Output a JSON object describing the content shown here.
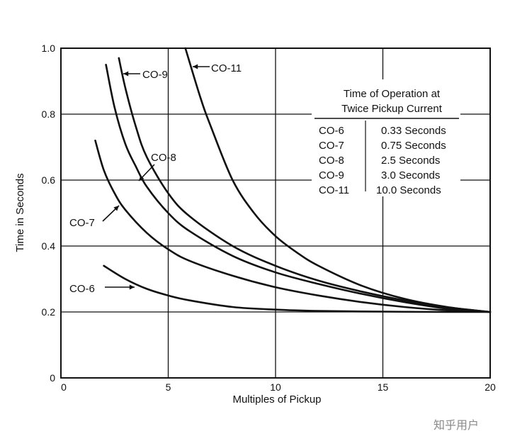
{
  "chart_data": {
    "type": "line",
    "title": "",
    "xlabel": "Multiples of Pickup",
    "ylabel": "Time in Seconds",
    "xlim": [
      0,
      20
    ],
    "ylim": [
      0,
      1.0
    ],
    "x_ticks": [
      "0",
      "5",
      "10",
      "15",
      "20"
    ],
    "y_ticks": [
      "0",
      "0.2",
      "0.4",
      "0.6",
      "0.8",
      "1.0"
    ],
    "grid": true,
    "series": [
      {
        "name": "CO-6",
        "x": [
          2,
          3,
          4,
          5,
          6,
          8,
          10,
          12,
          15,
          18,
          20
        ],
        "y": [
          0.34,
          0.3,
          0.27,
          0.25,
          0.235,
          0.215,
          0.207,
          0.203,
          0.201,
          0.2,
          0.2
        ]
      },
      {
        "name": "CO-7",
        "x": [
          1.6,
          2,
          2.5,
          3,
          4,
          5,
          6,
          8,
          10,
          12,
          14,
          16,
          18,
          20
        ],
        "y": [
          0.72,
          0.63,
          0.56,
          0.51,
          0.44,
          0.39,
          0.355,
          0.31,
          0.275,
          0.25,
          0.23,
          0.215,
          0.205,
          0.2
        ]
      },
      {
        "name": "CO-8",
        "x": [
          2.1,
          2.5,
          3,
          3.5,
          4,
          5,
          6,
          8,
          10,
          12,
          14,
          16,
          18,
          20
        ],
        "y": [
          0.95,
          0.82,
          0.71,
          0.64,
          0.58,
          0.5,
          0.445,
          0.37,
          0.32,
          0.285,
          0.255,
          0.23,
          0.21,
          0.2
        ]
      },
      {
        "name": "CO-9",
        "x": [
          2.7,
          3,
          3.5,
          4,
          5,
          6,
          8,
          10,
          12,
          14,
          16,
          18,
          20
        ],
        "y": [
          0.97,
          0.88,
          0.76,
          0.67,
          0.56,
          0.49,
          0.4,
          0.34,
          0.295,
          0.262,
          0.235,
          0.214,
          0.2
        ]
      },
      {
        "name": "CO-11",
        "x": [
          5.8,
          6.5,
          7,
          8,
          9,
          10,
          11,
          12,
          14,
          16,
          18,
          20
        ],
        "y": [
          1.0,
          0.85,
          0.76,
          0.6,
          0.5,
          0.43,
          0.38,
          0.34,
          0.28,
          0.24,
          0.215,
          0.2
        ]
      }
    ],
    "annotations": [
      {
        "series": "CO-6",
        "label": "CO-6"
      },
      {
        "series": "CO-7",
        "label": "CO-7"
      },
      {
        "series": "CO-8",
        "label": "CO-8"
      },
      {
        "series": "CO-9",
        "label": "CO-9"
      },
      {
        "series": "CO-11",
        "label": "CO-11"
      }
    ],
    "inset_table": {
      "title_line1": "Time of Operation at",
      "title_line2": "Twice Pickup Current",
      "rows": [
        {
          "relay": "CO-6",
          "time": "0.33 Seconds"
        },
        {
          "relay": "CO-7",
          "time": "0.75 Seconds"
        },
        {
          "relay": "CO-8",
          "time": "2.5 Seconds"
        },
        {
          "relay": "CO-9",
          "time": "3.0 Seconds"
        },
        {
          "relay": "CO-11",
          "time": "10.0 Seconds"
        }
      ]
    }
  },
  "watermark": "知乎用户",
  "colors": {
    "line": "#111111",
    "grid": "#111111",
    "background": "#ffffff"
  }
}
